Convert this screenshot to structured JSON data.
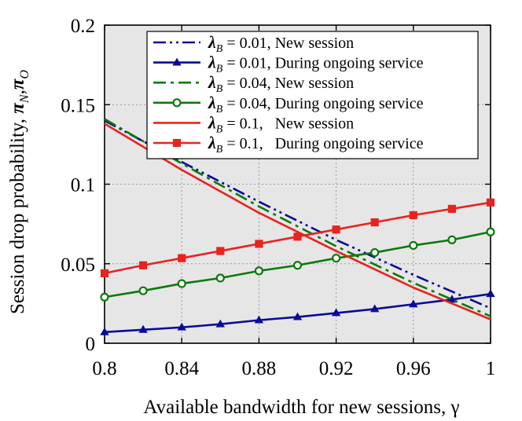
{
  "chart_data": {
    "type": "line",
    "title": "",
    "xlabel": "Available bandwidth for new sessions, γ",
    "ylabel_prefix": "Session drop probability, ",
    "ylabel_symbols": {
      "main": "π",
      "sub1": "N",
      "sep": ",",
      "sub2": "O"
    },
    "xlim": [
      0.8,
      1.0
    ],
    "ylim": [
      0,
      0.2
    ],
    "x_ticks": [
      0.8,
      0.84,
      0.88,
      0.92,
      0.96,
      1.0
    ],
    "x_tick_labels": [
      "0.8",
      "0.84",
      "0.88",
      "0.92",
      "0.96",
      "1"
    ],
    "y_ticks": [
      0,
      0.05,
      0.1,
      0.15,
      0.2
    ],
    "y_tick_labels": [
      "0",
      "0.05",
      "0.1",
      "0.15",
      "0.2"
    ],
    "grid": true,
    "legend_position": "top-right",
    "background_color": "#e6e6e6",
    "series": [
      {
        "name": "λB = 0.01, New session",
        "legend": {
          "lambda": "λ",
          "sub": "B",
          "text": " = 0.01, New session"
        },
        "color": "#0a0a9a",
        "dash": "dashdotdot",
        "marker": "none",
        "x": [
          0.8,
          0.84,
          0.88,
          0.92,
          0.96,
          1.0
        ],
        "values": [
          0.14,
          0.114,
          0.089,
          0.065,
          0.043,
          0.022
        ]
      },
      {
        "name": "λB = 0.01, During ongoing service",
        "legend": {
          "lambda": "λ",
          "sub": "B",
          "text": " = 0.01, During ongoing service"
        },
        "color": "#0a0a9a",
        "dash": "solid",
        "marker": "triangle",
        "x": [
          0.8,
          0.82,
          0.84,
          0.86,
          0.88,
          0.9,
          0.92,
          0.94,
          0.96,
          0.98,
          1.0
        ],
        "values": [
          0.007,
          0.0085,
          0.01,
          0.012,
          0.0145,
          0.0165,
          0.019,
          0.0215,
          0.0245,
          0.0275,
          0.031
        ]
      },
      {
        "name": "λB = 0.04, New session",
        "legend": {
          "lambda": "λ",
          "sub": "B",
          "text": " = 0.04, New session"
        },
        "color": "#0a7a0a",
        "dash": "dashdot",
        "marker": "none",
        "x": [
          0.8,
          0.84,
          0.88,
          0.92,
          0.96,
          1.0
        ],
        "values": [
          0.141,
          0.113,
          0.086,
          0.061,
          0.038,
          0.017
        ]
      },
      {
        "name": "λB = 0.04, During ongoing service",
        "legend": {
          "lambda": "λ",
          "sub": "B",
          "text": " = 0.04, During ongoing service"
        },
        "color": "#0a7a0a",
        "dash": "solid",
        "marker": "circle",
        "x": [
          0.8,
          0.82,
          0.84,
          0.86,
          0.88,
          0.9,
          0.92,
          0.94,
          0.96,
          0.98,
          1.0
        ],
        "values": [
          0.029,
          0.033,
          0.0375,
          0.041,
          0.0455,
          0.049,
          0.0535,
          0.057,
          0.0615,
          0.065,
          0.07
        ]
      },
      {
        "name": "λB = 0.1, New session",
        "legend": {
          "lambda": "λ",
          "sub": "B",
          "text": " = 0.1,   New session"
        },
        "color": "#e8231e",
        "dash": "solid",
        "marker": "none",
        "x": [
          0.8,
          0.84,
          0.88,
          0.92,
          0.96,
          1.0
        ],
        "values": [
          0.138,
          0.109,
          0.082,
          0.058,
          0.035,
          0.015
        ]
      },
      {
        "name": "λB = 0.1, During ongoing service",
        "legend": {
          "lambda": "λ",
          "sub": "B",
          "text": " = 0.1,   During ongoing service"
        },
        "color": "#e8231e",
        "dash": "solid",
        "marker": "square",
        "x": [
          0.8,
          0.82,
          0.84,
          0.86,
          0.88,
          0.9,
          0.92,
          0.94,
          0.96,
          0.98,
          1.0
        ],
        "values": [
          0.044,
          0.049,
          0.0535,
          0.058,
          0.0625,
          0.067,
          0.0715,
          0.076,
          0.0805,
          0.0845,
          0.0885
        ]
      }
    ]
  }
}
